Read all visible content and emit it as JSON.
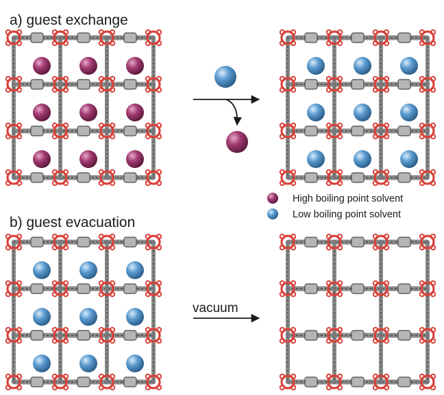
{
  "panels": {
    "a": {
      "title": "a) guest exchange"
    },
    "b": {
      "title": "b) guest evacuation"
    }
  },
  "arrows": {
    "exchange": {
      "label": ""
    },
    "vacuum": {
      "label": "vacuum"
    }
  },
  "legend": [
    {
      "label": "High boiling point solvent",
      "color": "#a23a72"
    },
    {
      "label": "Low boiling point solvent",
      "color": "#5b9bd0"
    }
  ],
  "frameworks": [
    {
      "name": "mof-a-before",
      "guest": "high"
    },
    {
      "name": "mof-a-after",
      "guest": "low"
    },
    {
      "name": "mof-b-before",
      "guest": "low"
    },
    {
      "name": "mof-b-after",
      "guest": "none"
    }
  ],
  "colors": {
    "node_red": "#d8423a",
    "linker_gray": "#8a8a8a",
    "linker_dark": "#4a4a4a",
    "high_guest": "#a23a72",
    "low_guest": "#5b9bd0"
  }
}
